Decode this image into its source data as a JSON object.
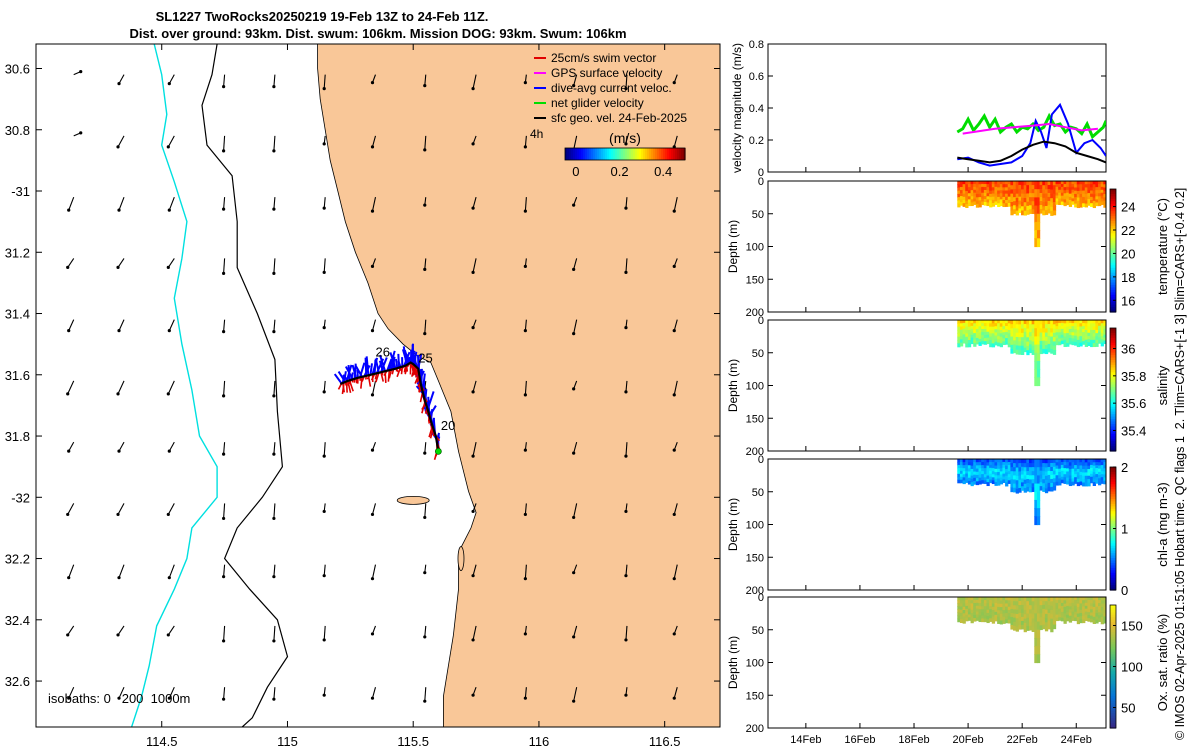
{
  "title": {
    "line1": "SL1227 TwoRocks20250219 19-Feb 13Z to 24-Feb 11Z.",
    "line2": "Dist. over ground: 93km. Dist. swum: 106km. Mission DOG: 93km. Swum: 106km"
  },
  "side_text": "© IMOS 02-Apr-2025 01:51:05 Hobart time. QC flags 1  2. Tlim=CARS+[-1 3] Slim=CARS+[-0.4 0.2]",
  "colors": {
    "land": "#f9c798",
    "ocean": "#ffffff",
    "isobath_200": "#000000",
    "isobath_1000": "#00e0e0",
    "track_red": "#e00000",
    "track_blue": "#0000ff",
    "track_green": "#00dd00",
    "geo_arrow": "#000000"
  },
  "chart_data": [
    {
      "type": "map",
      "name": "glider-track-map",
      "xlabel": "",
      "ylabel": "",
      "xlim": [
        114.0,
        116.72
      ],
      "ylim": [
        -32.75,
        -30.52
      ],
      "xticks": [
        114.5,
        115,
        115.5,
        116,
        116.5
      ],
      "xtick_labels": [
        "114.5",
        "115",
        "115.5",
        "116",
        "116.5"
      ],
      "yticks": [
        -30.6,
        -30.8,
        -31.0,
        -31.2,
        -31.4,
        -31.6,
        -31.8,
        -32.0,
        -32.2,
        -32.4,
        -32.6
      ],
      "ytick_labels": [
        "30.6",
        "30.8",
        "-31",
        "31.2",
        "31.4",
        "31.6",
        "31.8",
        "-32",
        "32.2",
        "32.4",
        "32.6"
      ],
      "legend": [
        {
          "label": "25cm/s swim vector",
          "color": "#e00000"
        },
        {
          "label": "GPS surface velocity",
          "color": "#ff00ff"
        },
        {
          "label": "dive-avg current veloc.",
          "color": "#0000ff"
        },
        {
          "label": "net glider velocity",
          "color": "#00dd00"
        },
        {
          "label": "sfc geo. vel. 24-Feb-2025",
          "color": "#000000"
        }
      ],
      "legend_extra_label": "4h",
      "colorbar": {
        "label": "(m/s)",
        "ticks": [
          0,
          0.2,
          0.4
        ],
        "tick_labels": [
          "0",
          "0.2",
          "0.4"
        ],
        "range": [
          -0.05,
          0.5
        ]
      },
      "track": {
        "lon": [
          115.6,
          115.59,
          115.57,
          115.56,
          115.545,
          115.53,
          115.52,
          115.5,
          115.49,
          115.47,
          115.43,
          115.38,
          115.33,
          115.28,
          115.24,
          115.21
        ],
        "lat": [
          -31.85,
          -31.8,
          -31.75,
          -31.72,
          -31.68,
          -31.63,
          -31.58,
          -31.565,
          -31.56,
          -31.57,
          -31.58,
          -31.59,
          -31.6,
          -31.61,
          -31.62,
          -31.63
        ]
      },
      "day_labels": [
        {
          "text": "20",
          "lon": 115.61,
          "lat": -31.78
        },
        {
          "text": "26",
          "lon": 115.35,
          "lat": -31.54
        },
        {
          "text": "25",
          "lon": 115.52,
          "lat": -31.56
        }
      ],
      "isobath_legend": "isobaths: 0   200  1000m"
    },
    {
      "type": "line",
      "name": "velocity-magnitude",
      "ylabel": "velocity magnitude (m/s)",
      "xlim": [
        12.6,
        25.1
      ],
      "ylim": [
        0,
        0.8
      ],
      "yticks": [
        0,
        0.2,
        0.4,
        0.6,
        0.8
      ],
      "ytick_labels": [
        "0",
        "0.2",
        "0.4",
        "0.6",
        "0.8"
      ],
      "series": [
        {
          "name": "net glider velocity",
          "color": "#00dd00",
          "x": [
            19.6,
            19.8,
            20.0,
            20.2,
            20.4,
            20.6,
            20.8,
            21.0,
            21.2,
            21.4,
            21.6,
            21.8,
            22.0,
            22.2,
            22.4,
            22.6,
            22.8,
            23.0,
            23.2,
            23.4,
            23.6,
            23.8,
            24.0,
            24.2,
            24.4,
            24.6,
            24.8,
            25.0,
            25.1
          ],
          "y": [
            0.25,
            0.27,
            0.33,
            0.26,
            0.3,
            0.35,
            0.28,
            0.33,
            0.25,
            0.28,
            0.3,
            0.25,
            0.28,
            0.27,
            0.3,
            0.26,
            0.28,
            0.35,
            0.29,
            0.3,
            0.25,
            0.28,
            0.27,
            0.24,
            0.3,
            0.22,
            0.25,
            0.28,
            0.32
          ]
        },
        {
          "name": "dive-avg current veloc.",
          "color": "#0000ff",
          "x": [
            19.6,
            20.0,
            20.4,
            20.8,
            21.2,
            21.6,
            22.0,
            22.3,
            22.5,
            22.7,
            22.9,
            23.1,
            23.4,
            23.7,
            24.0,
            24.3,
            24.6,
            24.9,
            25.1
          ],
          "y": [
            0.08,
            0.09,
            0.06,
            0.04,
            0.05,
            0.06,
            0.1,
            0.18,
            0.32,
            0.25,
            0.15,
            0.36,
            0.42,
            0.3,
            0.12,
            0.18,
            0.2,
            0.15,
            0.1
          ]
        },
        {
          "name": "sfc geo. vel.",
          "color": "#000000",
          "x": [
            19.6,
            20.0,
            20.4,
            20.8,
            21.2,
            21.6,
            22.0,
            22.4,
            22.8,
            23.2,
            23.6,
            24.0,
            24.4,
            24.8,
            25.1
          ],
          "y": [
            0.09,
            0.08,
            0.07,
            0.06,
            0.07,
            0.1,
            0.14,
            0.17,
            0.19,
            0.18,
            0.16,
            0.12,
            0.1,
            0.08,
            0.06
          ]
        },
        {
          "name": "GPS surface velocity",
          "color": "#ff00ff",
          "x": [
            19.8,
            21.0,
            22.4,
            23.0,
            23.6,
            24.2,
            24.8
          ],
          "y": [
            0.24,
            0.27,
            0.29,
            0.3,
            0.28,
            0.26,
            0.27
          ]
        }
      ]
    },
    {
      "type": "heatmap",
      "name": "temperature-section",
      "ylabel": "Depth (m)",
      "ylim": [
        200,
        0
      ],
      "yticks": [
        0,
        50,
        100,
        150,
        200
      ],
      "ytick_labels": [
        "0",
        "50",
        "100",
        "150",
        "200"
      ],
      "colorbar_label": "temperature (°C)",
      "colorbar_range": [
        15,
        25.5
      ],
      "colorbar_ticks": [
        "16",
        "18",
        "20",
        "22",
        "24"
      ],
      "profile": {
        "x_start": 19.6,
        "x_end": 25.1,
        "surface_value": 23.5,
        "mid_value": 23.0,
        "deep_value": 22.2,
        "typical_bottom_m": 35
      }
    },
    {
      "type": "heatmap",
      "name": "salinity-section",
      "ylabel": "Depth (m)",
      "ylim": [
        200,
        0
      ],
      "yticks": [
        0,
        50,
        100,
        150,
        200
      ],
      "ytick_labels": [
        "0",
        "50",
        "100",
        "150",
        "200"
      ],
      "colorbar_label": "salinity",
      "colorbar_range": [
        35.25,
        36.15
      ],
      "colorbar_ticks": [
        "35.4",
        "35.6",
        "35.8",
        "36"
      ],
      "profile": {
        "x_start": 19.6,
        "x_end": 25.1,
        "surface_value": 35.85,
        "mid_value": 35.75,
        "deep_value": 35.65,
        "typical_bottom_m": 35
      }
    },
    {
      "type": "heatmap",
      "name": "chla-section",
      "ylabel": "Depth (m)",
      "ylim": [
        200,
        0
      ],
      "yticks": [
        0,
        50,
        100,
        150,
        200
      ],
      "ytick_labels": [
        "0",
        "50",
        "100",
        "150",
        "200"
      ],
      "colorbar_label": "chl-a (mg m-3)",
      "colorbar_range": [
        0,
        2
      ],
      "colorbar_ticks": [
        "0",
        "1",
        "2"
      ],
      "profile": {
        "x_start": 19.6,
        "x_end": 25.1,
        "surface_value": 0.4,
        "mid_value": 0.7,
        "deep_value": 0.5,
        "typical_bottom_m": 35
      }
    },
    {
      "type": "heatmap",
      "name": "oxygen-section",
      "ylabel": "Depth (m)",
      "ylim": [
        200,
        0
      ],
      "yticks": [
        0,
        50,
        100,
        150,
        200
      ],
      "ytick_labels": [
        "0",
        "50",
        "100",
        "150",
        "200"
      ],
      "xticks": [
        14,
        16,
        18,
        20,
        22,
        24
      ],
      "xtick_labels": [
        "14Feb",
        "16Feb",
        "18Feb",
        "20Feb",
        "22Feb",
        "24Feb"
      ],
      "colorbar_label": "Ox. sat. ratio (%)",
      "colorbar_range": [
        25,
        175
      ],
      "colorbar_ticks": [
        "50",
        "100",
        "150"
      ],
      "profile": {
        "x_start": 19.6,
        "x_end": 25.1,
        "surface_value": 140,
        "mid_value": 138,
        "deep_value": 135,
        "typical_bottom_m": 35
      }
    }
  ]
}
